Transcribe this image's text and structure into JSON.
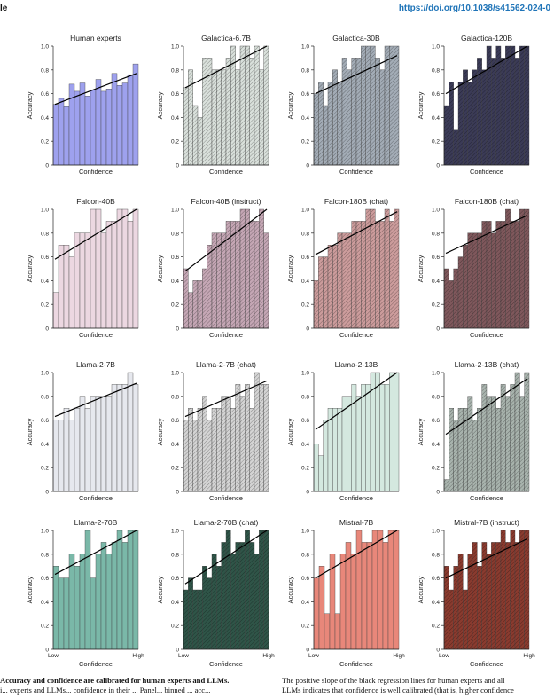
{
  "header": {
    "left_text": "le",
    "doi": "https://doi.org/10.1038/s41562-024-0"
  },
  "caption": {
    "left_bold": "Accuracy and confidence are calibrated for human experts and LLMs.",
    "left_line2": "i... experts and LLMs... confidence in their ... Panel... binned ... acc...",
    "right_line1": "The positive slope of the black regression lines for human experts and all",
    "right_line2": "LLMs indicates that confidence is well calibrated (that is, higher confidence"
  },
  "chart_data": [
    {
      "type": "bar",
      "title": "Human experts",
      "xlabel": "Confidence",
      "ylabel": "Accuracy",
      "ylim": [
        0,
        1.0
      ],
      "yticks": [
        "0",
        "0.2",
        "0.4",
        "0.6",
        "0.8",
        "1.0"
      ],
      "xticks": [],
      "values": [
        0.51,
        0.56,
        0.49,
        0.68,
        0.62,
        0.69,
        0.58,
        0.63,
        0.72,
        0.62,
        0.64,
        0.77,
        0.67,
        0.69,
        0.76,
        0.85
      ],
      "trend": [
        0.51,
        0.77
      ],
      "color": "#9ea1ee",
      "hatch": false
    },
    {
      "type": "bar",
      "title": "Galactica-6.7B",
      "xlabel": "Confidence",
      "ylabel": "Accuracy",
      "ylim": [
        0,
        1.0
      ],
      "yticks": [
        "0",
        "0.2",
        "0.4",
        "0.6",
        "0.8",
        "1.0"
      ],
      "xticks": [],
      "values": [
        0.65,
        0.8,
        0.5,
        0.4,
        0.9,
        0.9,
        0.8,
        0.8,
        0.8,
        0.9,
        1.0,
        0.8,
        1.0,
        1.0,
        0.9,
        1.0,
        0.8,
        1.0
      ],
      "trend": [
        0.65,
        1.0
      ],
      "color": "#d9e0db",
      "hatch": true
    },
    {
      "type": "bar",
      "title": "Galactica-30B",
      "xlabel": "Confidence",
      "ylabel": "Accuracy",
      "ylim": [
        0,
        1.0
      ],
      "yticks": [
        "0",
        "0.2",
        "0.4",
        "0.6",
        "0.8",
        "1.0"
      ],
      "xticks": [],
      "values": [
        0.6,
        0.7,
        0.5,
        0.7,
        0.8,
        0.7,
        0.9,
        0.8,
        0.9,
        0.9,
        1.0,
        1.0,
        1.0,
        0.9,
        0.8,
        1.0,
        1.0,
        1.0
      ],
      "trend": [
        0.6,
        0.92
      ],
      "color": "#a3acb6",
      "hatch": true
    },
    {
      "type": "bar",
      "title": "Galactica-120B",
      "xlabel": "Confidence",
      "ylabel": "Accuracy",
      "ylim": [
        0,
        1.0
      ],
      "yticks": [
        "0",
        "0.2",
        "0.4",
        "0.6",
        "0.8",
        "1.0"
      ],
      "xticks": [],
      "values": [
        0.5,
        0.7,
        0.3,
        0.7,
        0.8,
        0.7,
        0.8,
        0.9,
        0.8,
        1.0,
        0.9,
        1.0,
        0.9,
        1.0,
        1.0,
        0.9,
        1.0,
        1.0
      ],
      "trend": [
        0.6,
        1.0
      ],
      "color": "#3b3b57",
      "hatch": true
    },
    {
      "type": "bar",
      "title": "Falcon-40B",
      "xlabel": "Confidence",
      "ylabel": "Accuracy",
      "ylim": [
        0,
        1.0
      ],
      "yticks": [
        "0",
        "0.2",
        "0.4",
        "0.6",
        "0.8",
        "1.0"
      ],
      "xticks": [],
      "values": [
        0.3,
        0.7,
        0.7,
        0.6,
        0.8,
        0.8,
        0.8,
        1.0,
        1.0,
        0.8,
        0.9,
        0.9,
        1.0,
        1.0,
        0.9,
        1.0
      ],
      "trend": [
        0.58,
        1.0
      ],
      "color": "#ecd7e1",
      "hatch": false
    },
    {
      "type": "bar",
      "title": "Falcon-40B (instruct)",
      "xlabel": "Confidence",
      "ylabel": "Accuracy",
      "ylim": [
        0,
        1.0
      ],
      "yticks": [
        "0",
        "0.2",
        "0.4",
        "0.6",
        "0.8",
        "1.0"
      ],
      "xticks": [],
      "values": [
        0.5,
        0.3,
        0.4,
        0.4,
        0.5,
        0.7,
        0.8,
        0.8,
        0.8,
        0.9,
        0.9,
        0.9,
        1.0,
        1.0,
        0.9,
        0.9,
        1.0,
        0.8
      ],
      "trend": [
        0.48,
        1.0
      ],
      "color": "#c5a7b5",
      "hatch": true
    },
    {
      "type": "bar",
      "title": "Falcon-180B (chat)",
      "xlabel": "Confidence",
      "ylabel": "Accuracy",
      "ylim": [
        0,
        1.0
      ],
      "yticks": [
        "0",
        "0.2",
        "0.4",
        "0.6",
        "0.8",
        "1.0"
      ],
      "xticks": [],
      "values": [
        0.4,
        0.6,
        0.6,
        0.7,
        0.7,
        0.8,
        0.8,
        0.8,
        0.9,
        0.9,
        0.9,
        1.0,
        1.0,
        0.9,
        0.9,
        1.0,
        0.9,
        1.0
      ],
      "trend": [
        0.62,
        0.98
      ],
      "color": "#cc9c9c",
      "hatch": true
    },
    {
      "type": "bar",
      "title": "Falcon-180B (chat)",
      "xlabel": "Confidence",
      "ylabel": "Accuracy",
      "ylim": [
        0,
        1.0
      ],
      "yticks": [
        "0",
        "0.2",
        "0.4",
        "0.6",
        "0.8",
        "1.0"
      ],
      "xticks": [],
      "values": [
        0.5,
        0.4,
        0.5,
        0.6,
        0.7,
        0.8,
        0.8,
        0.8,
        0.9,
        0.9,
        0.8,
        0.9,
        0.9,
        1.0,
        0.9,
        0.9,
        1.0,
        1.0
      ],
      "trend": [
        0.63,
        0.95
      ],
      "color": "#7f585c",
      "hatch": true
    },
    {
      "type": "bar",
      "title": "Llama-2-7B",
      "xlabel": "Confidence",
      "ylabel": "Accuracy",
      "ylim": [
        0,
        1.0
      ],
      "yticks": [
        "0",
        "0.2",
        "0.4",
        "0.6",
        "0.8",
        "1.0"
      ],
      "xticks": [],
      "values": [
        0.6,
        0.6,
        0.7,
        0.6,
        0.7,
        0.8,
        0.7,
        0.8,
        0.8,
        0.8,
        0.8,
        0.9,
        0.9,
        0.9,
        1.0,
        0.9
      ],
      "trend": [
        0.63,
        0.91
      ],
      "color": "#e6e8ee",
      "hatch": false
    },
    {
      "type": "bar",
      "title": "Llama-2-7B (chat)",
      "xlabel": "Confidence",
      "ylabel": "Accuracy",
      "ylim": [
        0,
        1.0
      ],
      "yticks": [
        "0",
        "0.2",
        "0.4",
        "0.6",
        "0.8",
        "1.0"
      ],
      "xticks": [],
      "values": [
        0.6,
        0.7,
        0.6,
        0.7,
        0.8,
        0.6,
        0.7,
        0.7,
        0.8,
        0.8,
        0.7,
        0.9,
        0.8,
        0.9,
        0.7,
        1.0,
        0.9,
        0.9
      ],
      "trend": [
        0.63,
        0.93
      ],
      "color": "#d4d4d4",
      "hatch": true
    },
    {
      "type": "bar",
      "title": "Llama-2-13B",
      "xlabel": "Confidence",
      "ylabel": "Accuracy",
      "ylim": [
        0,
        1.0
      ],
      "yticks": [
        "0",
        "0.2",
        "0.4",
        "0.6",
        "0.8",
        "1.0"
      ],
      "xticks": [],
      "values": [
        0.4,
        0.3,
        0.6,
        0.7,
        0.7,
        0.7,
        0.8,
        0.8,
        0.9,
        0.8,
        0.9,
        0.9,
        1.0,
        1.0,
        0.9,
        0.9,
        1.0,
        1.0
      ],
      "trend": [
        0.52,
        1.0
      ],
      "color": "#d4e8df",
      "hatch": false
    },
    {
      "type": "bar",
      "title": "Llama-2-13B (chat)",
      "xlabel": "Confidence",
      "ylabel": "Accuracy",
      "ylim": [
        0,
        1.0
      ],
      "yticks": [
        "0",
        "0.2",
        "0.4",
        "0.6",
        "0.8",
        "1.0"
      ],
      "xticks": [],
      "values": [
        0.1,
        0.7,
        0.6,
        0.7,
        0.7,
        0.8,
        0.6,
        0.7,
        0.9,
        0.8,
        0.8,
        0.7,
        0.9,
        0.8,
        0.9,
        1.0,
        0.8,
        1.0
      ],
      "trend": [
        0.48,
        0.95
      ],
      "color": "#a8b3ad",
      "hatch": true
    },
    {
      "type": "bar",
      "title": "Llama-2-70B",
      "xlabel": "Confidence",
      "ylabel": "Accuracy",
      "ylim": [
        0,
        1.0
      ],
      "yticks": [
        "0",
        "0.2",
        "0.4",
        "0.6",
        "0.8",
        "1.0"
      ],
      "xticks": [
        "Low",
        "High"
      ],
      "values": [
        0.7,
        0.6,
        0.6,
        0.8,
        0.7,
        0.8,
        1.0,
        0.6,
        0.8,
        0.9,
        0.8,
        0.9,
        1.0,
        0.9,
        1.0,
        1.0
      ],
      "trend": [
        0.63,
        1.0
      ],
      "color": "#7ab8a8",
      "hatch": false
    },
    {
      "type": "bar",
      "title": "Llama-2-70B (chat)",
      "xlabel": "Confidence",
      "ylabel": "Accuracy",
      "ylim": [
        0,
        1.0
      ],
      "yticks": [
        "0",
        "0.2",
        "0.4",
        "0.6",
        "0.8",
        "1.0"
      ],
      "xticks": [
        "Low",
        "High"
      ],
      "values": [
        0.5,
        0.6,
        0.5,
        0.5,
        0.7,
        0.6,
        0.8,
        0.7,
        0.9,
        1.0,
        0.8,
        0.9,
        0.9,
        1.0,
        0.9,
        0.8,
        1.0,
        1.0
      ],
      "trend": [
        0.55,
        1.0
      ],
      "color": "#2f5548",
      "hatch": true
    },
    {
      "type": "bar",
      "title": "Mistral-7B",
      "xlabel": "Confidence",
      "ylabel": "Accuracy",
      "ylim": [
        0,
        1.0
      ],
      "yticks": [
        "0",
        "0.2",
        "0.4",
        "0.6",
        "0.8",
        "1.0"
      ],
      "xticks": [
        "Low",
        "High"
      ],
      "values": [
        0.6,
        0.7,
        0.3,
        0.8,
        0.3,
        0.8,
        0.9,
        0.8,
        1.0,
        0.9,
        0.9,
        1.0,
        1.0,
        0.9,
        1.0,
        1.0
      ],
      "trend": [
        0.6,
        1.0
      ],
      "color": "#e8877a",
      "hatch": false
    },
    {
      "type": "bar",
      "title": "Mistral-7B (instruct)",
      "xlabel": "Confidence",
      "ylabel": "Accuracy",
      "ylim": [
        0,
        1.0
      ],
      "yticks": [
        "0",
        "0.2",
        "0.4",
        "0.6",
        "0.8",
        "1.0"
      ],
      "xticks": [
        "Low",
        "High"
      ],
      "values": [
        0.7,
        0.5,
        0.7,
        0.8,
        0.5,
        0.8,
        0.9,
        0.7,
        0.9,
        0.8,
        0.9,
        0.9,
        1.0,
        0.9,
        1.0,
        0.9,
        1.0,
        1.0
      ],
      "trend": [
        0.6,
        0.93
      ],
      "color": "#8a3b2f",
      "hatch": true
    }
  ]
}
